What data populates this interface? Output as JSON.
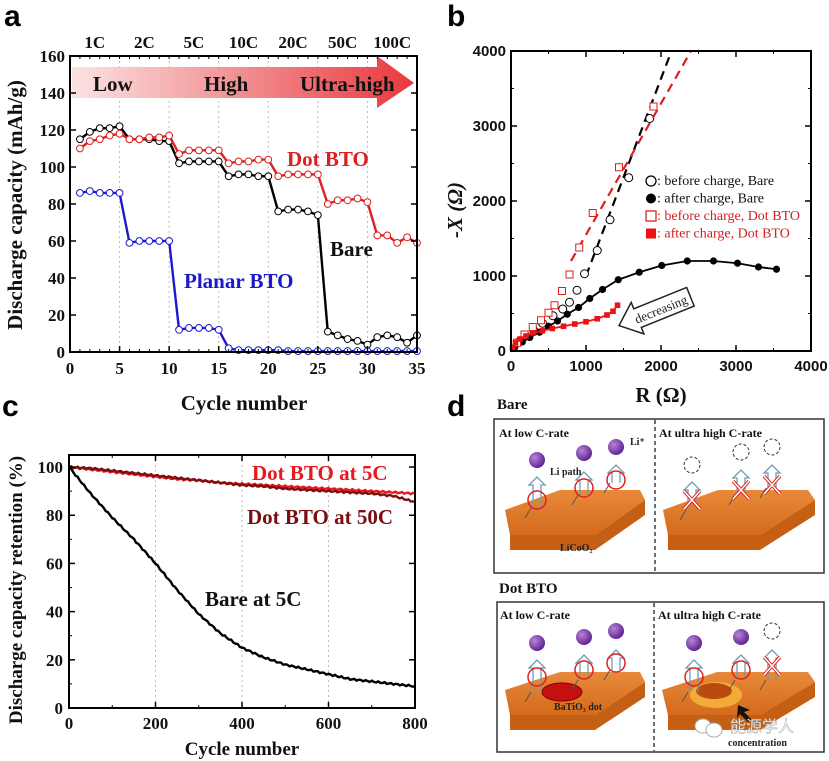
{
  "panels": {
    "a": {
      "letter": "a"
    },
    "b": {
      "letter": "b"
    },
    "c": {
      "letter": "c"
    },
    "d": {
      "letter": "d"
    }
  },
  "chart_data": [
    {
      "id": "a",
      "type": "line",
      "title": "",
      "xlabel": "Cycle number",
      "ylabel": "Discharge capacity (mAh/g)",
      "xlim": [
        0,
        35
      ],
      "ylim": [
        0,
        160
      ],
      "xticks": [
        0,
        5,
        10,
        15,
        20,
        25,
        30,
        35
      ],
      "yticks": [
        0,
        20,
        40,
        60,
        80,
        100,
        120,
        140,
        160
      ],
      "grid": "vertical dotted at 5-cycle boundaries",
      "top_rate_labels": [
        "1C",
        "2C",
        "5C",
        "10C",
        "20C",
        "50C",
        "100C"
      ],
      "rate_arrow": {
        "labels": [
          "Low",
          "High",
          "Ultra-high"
        ],
        "color_start": "#fbe3e3",
        "color_end": "#e8383d"
      },
      "x": [
        1,
        2,
        3,
        4,
        5,
        6,
        7,
        8,
        9,
        10,
        11,
        12,
        13,
        14,
        15,
        16,
        17,
        18,
        19,
        20,
        21,
        22,
        23,
        24,
        25,
        26,
        27,
        28,
        29,
        30,
        31,
        32,
        33,
        34,
        35
      ],
      "series": [
        {
          "name": "Bare",
          "label": "Bare",
          "color": "#000000",
          "values": [
            115,
            119,
            121,
            121,
            122,
            115,
            115,
            115,
            114,
            114,
            102,
            103,
            103,
            103,
            103,
            95,
            96,
            96,
            95,
            95,
            76,
            77,
            77,
            76,
            74,
            11,
            9,
            7,
            6,
            4,
            8,
            9,
            8,
            5,
            9
          ]
        },
        {
          "name": "Dot BTO",
          "label": "Dot BTO",
          "color": "#dd1f1f",
          "values": [
            110,
            114,
            115,
            117,
            118,
            115,
            115,
            116,
            116,
            117,
            107,
            109,
            109,
            109,
            109,
            102,
            103,
            103,
            104,
            104,
            95,
            96,
            96,
            96,
            96,
            80,
            82,
            82,
            83,
            81,
            63,
            63,
            59,
            62,
            59
          ]
        },
        {
          "name": "Planar BTO",
          "label": "Planar BTO",
          "color": "#1a1acc",
          "values": [
            86,
            87,
            86,
            86,
            86,
            59,
            60,
            60,
            60,
            60,
            12,
            13,
            13,
            13,
            12,
            2,
            1,
            1,
            1,
            1,
            1,
            0.5,
            0.5,
            0.5,
            0.5,
            0.5,
            0.5,
            0.5,
            0.5,
            0.5,
            0.5,
            0.5,
            0.5,
            0.5,
            0.5
          ]
        }
      ]
    },
    {
      "id": "b",
      "type": "scatter",
      "title": "",
      "xlabel": "R (Ω)",
      "ylabel": "-X (Ω)",
      "xlim": [
        0,
        4000
      ],
      "ylim": [
        0,
        4000
      ],
      "xticks": [
        0,
        1000,
        2000,
        3000,
        4000
      ],
      "yticks": [
        0,
        1000,
        2000,
        3000,
        4000
      ],
      "legend_position": "right-middle",
      "annotation": "decreasing",
      "series": [
        {
          "name": ": before charge, Bare",
          "marker": "open-circle",
          "color": "#000000",
          "points": [
            [
              100,
              120
            ],
            [
              200,
              200
            ],
            [
              300,
              280
            ],
            [
              420,
              370
            ],
            [
              560,
              470
            ],
            [
              690,
              560
            ],
            [
              780,
              650
            ],
            [
              880,
              810
            ],
            [
              980,
              1030
            ],
            [
              1150,
              1340
            ],
            [
              1320,
              1750
            ],
            [
              1570,
              2310
            ],
            [
              1850,
              3100
            ]
          ],
          "fit_line": [
            [
              1000,
              1000
            ],
            [
              2140,
              4000
            ]
          ]
        },
        {
          "name": ": after charge, Bare",
          "marker": "filled-circle",
          "color": "#000000",
          "points": [
            [
              50,
              50
            ],
            [
              150,
              120
            ],
            [
              250,
              180
            ],
            [
              380,
              250
            ],
            [
              500,
              330
            ],
            [
              620,
              400
            ],
            [
              750,
              490
            ],
            [
              900,
              580
            ],
            [
              1050,
              700
            ],
            [
              1220,
              820
            ],
            [
              1430,
              950
            ],
            [
              1710,
              1050
            ],
            [
              2010,
              1140
            ],
            [
              2350,
              1200
            ],
            [
              2700,
              1200
            ],
            [
              3020,
              1170
            ],
            [
              3300,
              1120
            ],
            [
              3540,
              1090
            ]
          ]
        },
        {
          "name": ": before charge, Dot BTO",
          "marker": "open-square",
          "color": "#dd1f1f",
          "points": [
            [
              80,
              110
            ],
            [
              180,
              220
            ],
            [
              290,
              320
            ],
            [
              400,
              410
            ],
            [
              500,
              510
            ],
            [
              580,
              610
            ],
            [
              680,
              800
            ],
            [
              780,
              1020
            ],
            [
              910,
              1380
            ],
            [
              1090,
              1840
            ],
            [
              1440,
              2450
            ],
            [
              1900,
              3260
            ]
          ],
          "fit_line": [
            [
              800,
              1200
            ],
            [
              2400,
              4000
            ]
          ]
        },
        {
          "name": ": after charge, Dot BTO",
          "marker": "filled-square",
          "color": "#ee1111",
          "points": [
            [
              20,
              40
            ],
            [
              60,
              110
            ],
            [
              120,
              160
            ],
            [
              200,
              200
            ],
            [
              300,
              240
            ],
            [
              420,
              270
            ],
            [
              550,
              300
            ],
            [
              700,
              330
            ],
            [
              850,
              360
            ],
            [
              1000,
              390
            ],
            [
              1150,
              430
            ],
            [
              1280,
              480
            ],
            [
              1360,
              530
            ],
            [
              1420,
              610
            ]
          ]
        }
      ]
    },
    {
      "id": "c",
      "type": "line",
      "title": "",
      "xlabel": "Cycle number",
      "ylabel": "Discharge capacity retention (%)",
      "xlim": [
        0,
        800
      ],
      "ylim": [
        0,
        105
      ],
      "xticks": [
        0,
        200,
        400,
        600,
        800
      ],
      "yticks": [
        0,
        20,
        40,
        60,
        80,
        100
      ],
      "grid": "vertical dotted at 200, 400, 600",
      "x": [
        0,
        50,
        100,
        150,
        200,
        250,
        300,
        350,
        400,
        450,
        500,
        550,
        600,
        650,
        700,
        750,
        800
      ],
      "series": [
        {
          "name": "Dot BTO at 5C",
          "label": "Dot BTO at 5C",
          "color": "#e8191e",
          "values": [
            100,
            99,
            98,
            97,
            96,
            95,
            94.5,
            93.5,
            93,
            92.5,
            92,
            91.5,
            91,
            90.5,
            90,
            89.5,
            89
          ]
        },
        {
          "name": "Dot BTO at 50C",
          "label": "Dot BTO at 50C",
          "color": "#7a0e10",
          "values": [
            100,
            99.5,
            98.5,
            97.5,
            96.5,
            95.5,
            94.5,
            93.5,
            92.5,
            92,
            91,
            90.5,
            90,
            89.5,
            89,
            88,
            85.5
          ]
        },
        {
          "name": "Bare at 5C",
          "label": "Bare at 5C",
          "color": "#000000",
          "values": [
            100,
            89,
            79,
            70,
            60,
            49,
            39,
            31,
            25,
            21,
            18,
            16,
            14,
            12,
            11,
            10,
            9
          ]
        }
      ]
    }
  ],
  "schematic": {
    "bare": {
      "title": "Bare",
      "left_caption": "At low C-rate",
      "right_caption": "At ultra high C-rate",
      "ion_label": "Li⁺",
      "path_label": "Li path",
      "substrate_label": "LiCoO₂"
    },
    "dot_bto": {
      "title": "Dot BTO",
      "left_caption": "At low C-rate",
      "right_caption": "At ultra high C-rate",
      "dot_label": "BaTiO₃ dot",
      "concentration_label": "concentration",
      "watermark": "能源学人"
    },
    "colors": {
      "substrate": "#e07a2a",
      "ion": "#7a2fa8",
      "cross": "#e02020",
      "arrow": "#6e9cb8"
    }
  }
}
